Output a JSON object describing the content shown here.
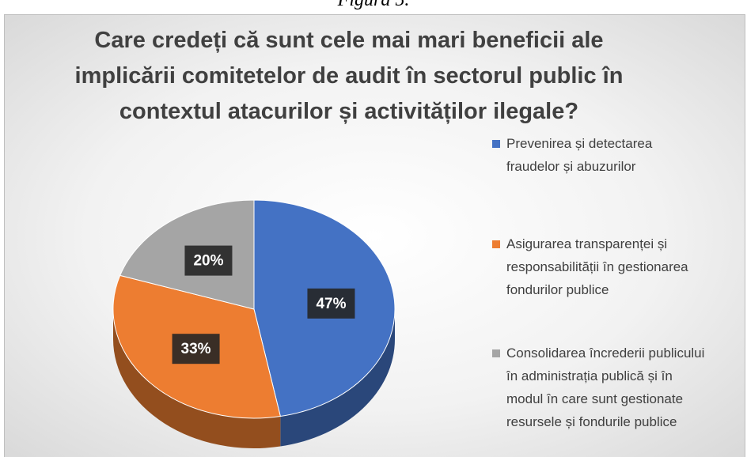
{
  "caption": "Figura 5.",
  "chart_data": {
    "type": "pie",
    "title": "Care credeți că sunt cele mai mari beneficii ale implicării comitetelor de audit în sectorul public în contextul atacurilor și activităților ilegale?",
    "categories": [
      "Prevenirea și detectarea fraudelor și abuzurilor",
      "Asigurarea transparenței și responsabilității în gestionarea fondurilor publice",
      "Consolidarea încrederii publicului în administrația publică și în modul în care sunt gestionate resursele și fondurile publice"
    ],
    "values": [
      47,
      33,
      20
    ],
    "value_labels": [
      "47%",
      "33%",
      "20%"
    ],
    "colors": [
      "#4472c4",
      "#ed7d31",
      "#a5a5a5"
    ],
    "legend": "right"
  }
}
